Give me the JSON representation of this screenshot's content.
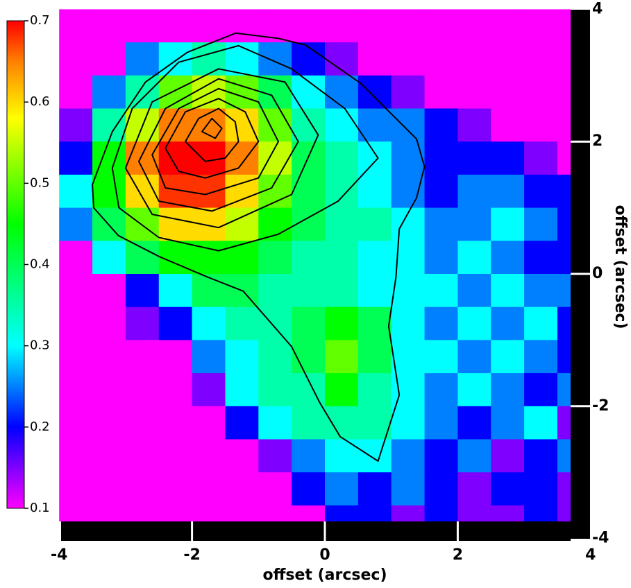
{
  "chart_data": {
    "type": "heatmap",
    "xlabel": "offset (arcsec)",
    "ylabel": "offset (arcsec)",
    "xlim": [
      -4,
      4
    ],
    "ylim": [
      -4,
      4
    ],
    "xticks": [
      -4,
      -2,
      0,
      2,
      4
    ],
    "yticks": [
      4,
      2,
      0,
      -2,
      -4
    ],
    "x": [
      -3.75,
      -3.25,
      -2.75,
      -2.25,
      -1.75,
      -1.25,
      -0.75,
      -0.25,
      0.25,
      0.75,
      1.25,
      1.75,
      2.25,
      2.75,
      3.25,
      3.75
    ],
    "y": [
      3.75,
      3.25,
      2.75,
      2.25,
      1.75,
      1.25,
      0.75,
      0.25,
      -0.25,
      -0.75,
      -1.25,
      -1.75,
      -2.25,
      -2.75,
      -3.25,
      -3.75
    ],
    "z": [
      [
        0.1,
        0.1,
        0.1,
        0.1,
        0.1,
        0.1,
        0.1,
        0.1,
        0.1,
        0.1,
        0.1,
        0.1,
        0.1,
        0.1,
        0.1,
        0.1
      ],
      [
        0.1,
        0.1,
        0.25,
        0.3,
        0.35,
        0.3,
        0.25,
        0.2,
        0.15,
        0.1,
        0.1,
        0.1,
        0.1,
        0.1,
        0.1,
        0.1
      ],
      [
        0.1,
        0.25,
        0.35,
        0.5,
        0.55,
        0.5,
        0.4,
        0.3,
        0.25,
        0.2,
        0.15,
        0.1,
        0.1,
        0.1,
        0.1,
        0.1
      ],
      [
        0.15,
        0.35,
        0.55,
        0.65,
        0.65,
        0.6,
        0.5,
        0.35,
        0.3,
        0.25,
        0.25,
        0.2,
        0.15,
        0.1,
        0.1,
        0.1
      ],
      [
        0.2,
        0.45,
        0.65,
        0.7,
        0.7,
        0.65,
        0.55,
        0.4,
        0.35,
        0.3,
        0.25,
        0.2,
        0.2,
        0.2,
        0.15,
        0.1
      ],
      [
        0.3,
        0.45,
        0.6,
        0.68,
        0.68,
        0.6,
        0.5,
        0.4,
        0.35,
        0.3,
        0.25,
        0.2,
        0.25,
        0.25,
        0.2,
        0.2
      ],
      [
        0.25,
        0.4,
        0.5,
        0.6,
        0.6,
        0.55,
        0.45,
        0.4,
        0.35,
        0.35,
        0.3,
        0.25,
        0.25,
        0.3,
        0.25,
        0.2
      ],
      [
        0.1,
        0.3,
        0.4,
        0.45,
        0.45,
        0.45,
        0.4,
        0.35,
        0.35,
        0.3,
        0.3,
        0.25,
        0.3,
        0.25,
        0.2,
        0.2
      ],
      [
        0.1,
        0.1,
        0.2,
        0.3,
        0.4,
        0.4,
        0.35,
        0.35,
        0.35,
        0.3,
        0.3,
        0.3,
        0.25,
        0.3,
        0.25,
        0.25
      ],
      [
        0.1,
        0.1,
        0.15,
        0.2,
        0.3,
        0.35,
        0.35,
        0.4,
        0.45,
        0.4,
        0.3,
        0.25,
        0.3,
        0.25,
        0.3,
        0.2
      ],
      [
        0.1,
        0.1,
        0.1,
        0.1,
        0.25,
        0.3,
        0.35,
        0.4,
        0.5,
        0.4,
        0.3,
        0.3,
        0.25,
        0.3,
        0.25,
        0.2
      ],
      [
        0.1,
        0.1,
        0.1,
        0.1,
        0.15,
        0.3,
        0.35,
        0.35,
        0.45,
        0.35,
        0.3,
        0.25,
        0.3,
        0.25,
        0.2,
        0.25
      ],
      [
        0.1,
        0.1,
        0.1,
        0.1,
        0.1,
        0.2,
        0.3,
        0.35,
        0.35,
        0.35,
        0.3,
        0.25,
        0.2,
        0.25,
        0.3,
        0.15
      ],
      [
        0.1,
        0.1,
        0.1,
        0.1,
        0.1,
        0.1,
        0.15,
        0.25,
        0.3,
        0.3,
        0.25,
        0.2,
        0.25,
        0.15,
        0.2,
        0.25
      ],
      [
        0.1,
        0.1,
        0.1,
        0.1,
        0.1,
        0.1,
        0.1,
        0.2,
        0.25,
        0.2,
        0.25,
        0.2,
        0.15,
        0.2,
        0.2,
        0.15
      ],
      [
        0.1,
        0.1,
        0.1,
        0.1,
        0.1,
        0.1,
        0.1,
        0.1,
        0.2,
        0.2,
        0.15,
        0.2,
        0.15,
        0.15,
        0.2,
        0.15
      ]
    ],
    "colorbar": {
      "clim": [
        0.1,
        0.7
      ],
      "ticks": [
        0.7,
        0.6,
        0.5,
        0.4,
        0.3,
        0.2,
        0.1
      ],
      "colorscale": [
        [
          0.1,
          "#ff00ff"
        ],
        [
          0.2,
          "#0000ff"
        ],
        [
          0.3,
          "#00ffff"
        ],
        [
          0.45,
          "#00ff00"
        ],
        [
          0.58,
          "#ffff00"
        ],
        [
          0.65,
          "#ff8000"
        ],
        [
          0.7,
          "#ff0000"
        ]
      ]
    },
    "contour_color": "#000000",
    "contours": [
      {
        "x": [
          -3.5,
          -3.2,
          -2.7,
          -2.07,
          -1.34,
          -0.7,
          -0.29,
          0.54,
          1.38,
          1.5,
          1.38,
          1.12,
          1.07,
          0.96,
          1.12,
          0.8,
          0.23,
          -0.08,
          -0.5,
          -1.23,
          -1.76,
          -2.49,
          -3.11,
          -3.48
        ],
        "y": [
          1.35,
          2.15,
          2.9,
          3.35,
          3.64,
          3.56,
          3.46,
          2.88,
          2.04,
          1.62,
          1.15,
          0.68,
          -0.05,
          -0.79,
          -1.83,
          -2.83,
          -2.46,
          -1.94,
          -1.1,
          -0.26,
          -0.05,
          0.26,
          0.58,
          1.0
        ]
      },
      {
        "x": [
          -3.2,
          -2.9,
          -2.2,
          -1.3,
          -0.5,
          0.3,
          0.8,
          0.2,
          -0.7,
          -1.6,
          -2.5,
          -3.1
        ],
        "y": [
          1.6,
          2.5,
          3.2,
          3.45,
          3.1,
          2.5,
          1.75,
          1.1,
          0.6,
          0.35,
          0.55,
          1.0
        ]
      },
      {
        "x": [
          -3.0,
          -2.6,
          -1.6,
          -0.6,
          -0.1,
          -0.5,
          -1.6,
          -2.6
        ],
        "y": [
          1.6,
          2.6,
          3.1,
          2.9,
          2.1,
          1.2,
          0.7,
          0.9
        ]
      },
      {
        "x": [
          -2.8,
          -2.4,
          -1.6,
          -0.8,
          -0.4,
          -0.8,
          -1.7,
          -2.5
        ],
        "y": [
          1.7,
          2.5,
          2.95,
          2.7,
          2.0,
          1.3,
          0.95,
          1.1
        ]
      },
      {
        "x": [
          -2.6,
          -2.2,
          -1.6,
          -1.0,
          -0.7,
          -1.0,
          -1.8,
          -2.4
        ],
        "y": [
          1.8,
          2.5,
          2.8,
          2.6,
          2.0,
          1.45,
          1.2,
          1.3
        ]
      },
      {
        "x": [
          -2.4,
          -2.1,
          -1.6,
          -1.2,
          -1.0,
          -1.3,
          -1.8,
          -2.2
        ],
        "y": [
          1.9,
          2.45,
          2.65,
          2.45,
          2.0,
          1.6,
          1.45,
          1.55
        ]
      },
      {
        "x": [
          -2.1,
          -1.9,
          -1.6,
          -1.35,
          -1.3,
          -1.5,
          -1.8
        ],
        "y": [
          2.0,
          2.35,
          2.5,
          2.3,
          2.0,
          1.75,
          1.7
        ]
      },
      {
        "x": [
          -1.85,
          -1.7,
          -1.55,
          -1.65
        ],
        "y": [
          2.15,
          2.35,
          2.2,
          2.05
        ]
      }
    ]
  }
}
